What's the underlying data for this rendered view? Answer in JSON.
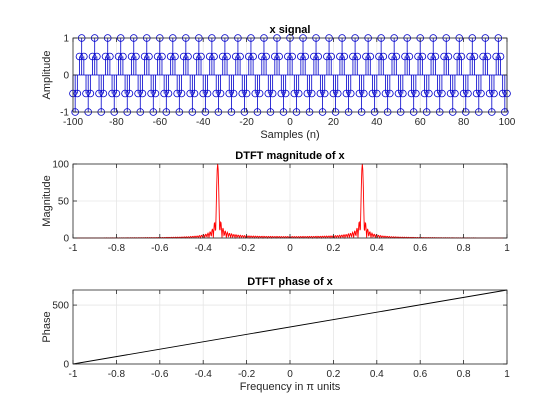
{
  "chart_data": [
    {
      "type": "stem",
      "title": "x signal",
      "xlabel": "Samples (n)",
      "ylabel": "Amplitude",
      "xlim": [
        -100,
        100
      ],
      "ylim": [
        -1,
        1
      ],
      "grid": true,
      "xticks": [
        "-100",
        "-80",
        "-60",
        "-40",
        "-20",
        "0",
        "20",
        "40",
        "60",
        "80",
        "100"
      ],
      "yticks": [
        "-1",
        "0",
        "1"
      ],
      "signal": "x(n) = cos(pi*n/3), n = -100 ... 100",
      "series": [
        {
          "color": "#0000cc",
          "marker": "open-circle"
        }
      ]
    },
    {
      "type": "line",
      "title": "DTFT magnitude of x",
      "xlabel": "",
      "ylabel": "Magnitude",
      "xlim": [
        -1,
        1
      ],
      "ylim": [
        0,
        100
      ],
      "grid": true,
      "xticks": [
        "-1",
        "-0.8",
        "-0.6",
        "-0.4",
        "-0.2",
        "0",
        "0.2",
        "0.4",
        "0.6",
        "0.8",
        "1"
      ],
      "yticks": [
        "0",
        "50",
        "100"
      ],
      "peaks": [
        {
          "x": -0.333,
          "y": 100.5
        },
        {
          "x": 0.333,
          "y": 100.5
        }
      ],
      "series": [
        {
          "color": "#ff0000"
        }
      ]
    },
    {
      "type": "line",
      "title": "DTFT phase of x",
      "xlabel": "Frequency in π units",
      "ylabel": "Phase",
      "xlim": [
        -1,
        1
      ],
      "ylim": [
        0,
        628
      ],
      "grid": true,
      "xticks": [
        "-1",
        "-0.8",
        "-0.6",
        "-0.4",
        "-0.2",
        "0",
        "0.2",
        "0.4",
        "0.6",
        "0.8",
        "1"
      ],
      "yticks": [
        "0",
        "500"
      ],
      "x": [
        -1,
        1
      ],
      "y": [
        0,
        628
      ],
      "series": [
        {
          "color": "#000000"
        }
      ]
    }
  ]
}
